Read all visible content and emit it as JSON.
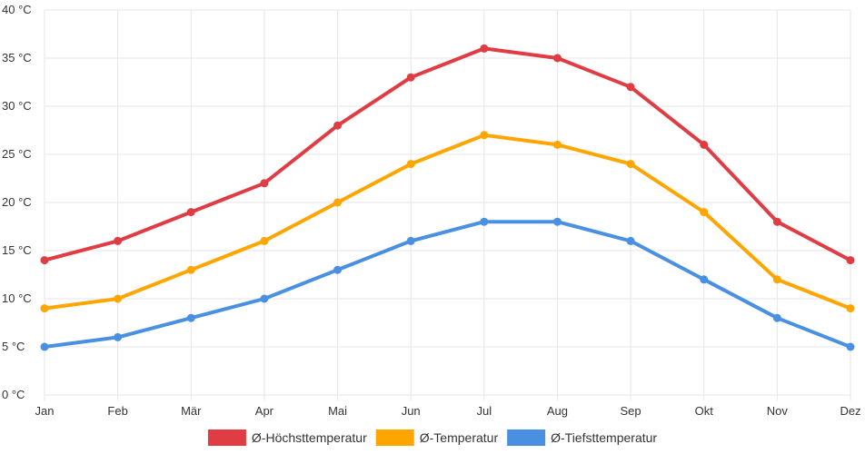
{
  "chart_data": {
    "type": "line",
    "title": "",
    "xlabel": "",
    "ylabel": "",
    "categories": [
      "Jan",
      "Feb",
      "Mär",
      "Apr",
      "Mai",
      "Jun",
      "Jul",
      "Aug",
      "Sep",
      "Okt",
      "Nov",
      "Dez"
    ],
    "ylim": [
      0,
      40
    ],
    "y_ticks": [
      0,
      5,
      10,
      15,
      20,
      25,
      30,
      35,
      40
    ],
    "y_unit": " °C",
    "grid": true,
    "legend_position": "bottom-center",
    "series": [
      {
        "name": "Ø-Höchsttemperatur",
        "color": "#e03c44",
        "values": [
          14,
          16,
          19,
          22,
          28,
          33,
          36,
          35,
          32,
          26,
          18,
          14
        ]
      },
      {
        "name": "Ø-Temperatur",
        "color": "#ffa500",
        "values": [
          9,
          10,
          13,
          16,
          20,
          24,
          27,
          26,
          24,
          19,
          12,
          9
        ]
      },
      {
        "name": "Ø-Tiefsttemperatur",
        "color": "#4a90e2",
        "values": [
          5,
          6,
          8,
          10,
          13,
          16,
          18,
          18,
          16,
          12,
          8,
          5
        ]
      }
    ]
  }
}
